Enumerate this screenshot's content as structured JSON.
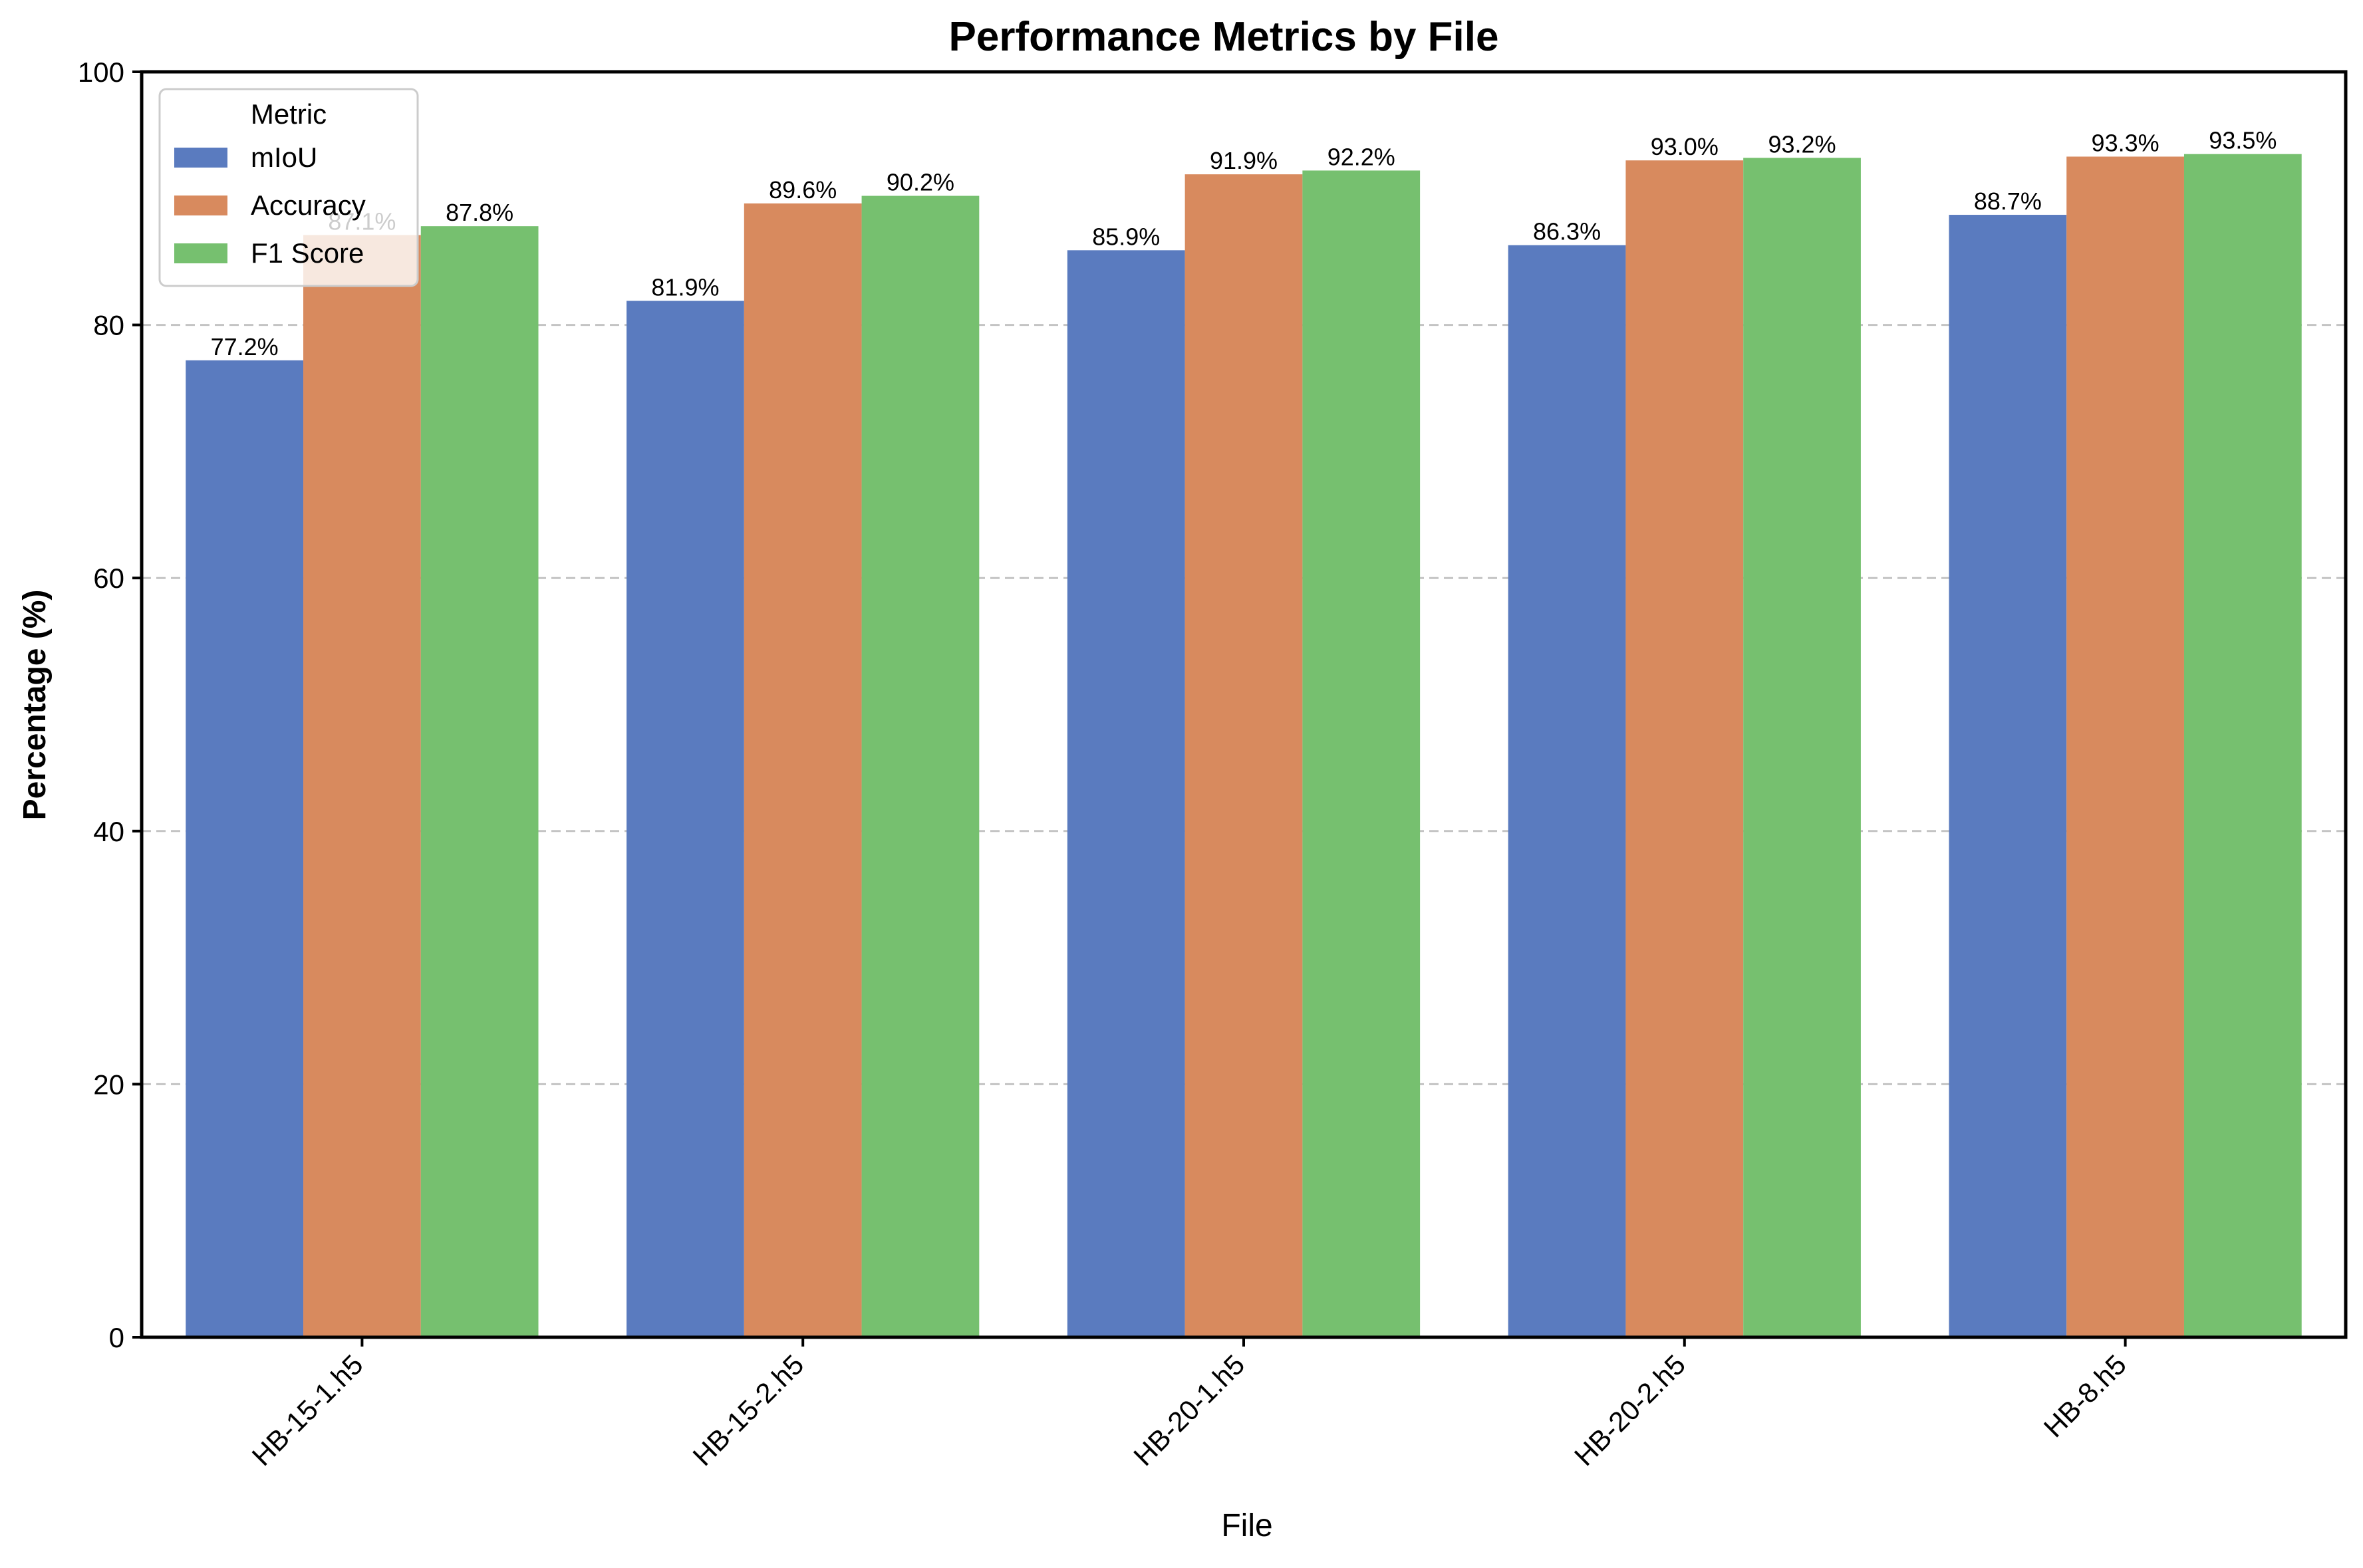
{
  "chart_data": {
    "type": "bar",
    "title": "Performance Metrics by File",
    "xlabel": "File",
    "ylabel": "Percentage (%)",
    "ylim": [
      0,
      100
    ],
    "yticks": [
      0,
      20,
      40,
      60,
      80,
      100
    ],
    "grid": "y-dashed",
    "categories": [
      "HB-15-1.h5",
      "HB-15-2.h5",
      "HB-20-1.h5",
      "HB-20-2.h5",
      "HB-8.h5"
    ],
    "legend": {
      "title": "Metric",
      "placement": "top-left"
    },
    "series": [
      {
        "name": "mIoU",
        "color": "#5a7bbf",
        "values": [
          77.2,
          81.9,
          85.9,
          86.3,
          88.7
        ],
        "labels": [
          "77.2%",
          "81.9%",
          "85.9%",
          "86.3%",
          "88.7%"
        ]
      },
      {
        "name": "Accuracy",
        "color": "#d88a5e",
        "values": [
          87.1,
          89.6,
          91.9,
          93.0,
          93.3
        ],
        "labels": [
          "87.1%",
          "89.6%",
          "91.9%",
          "93.0%",
          "93.3%"
        ]
      },
      {
        "name": "F1 Score",
        "color": "#76c06f",
        "values": [
          87.8,
          90.2,
          92.2,
          93.2,
          93.5
        ],
        "labels": [
          "87.8%",
          "90.2%",
          "92.2%",
          "93.2%",
          "93.5%"
        ]
      }
    ]
  }
}
